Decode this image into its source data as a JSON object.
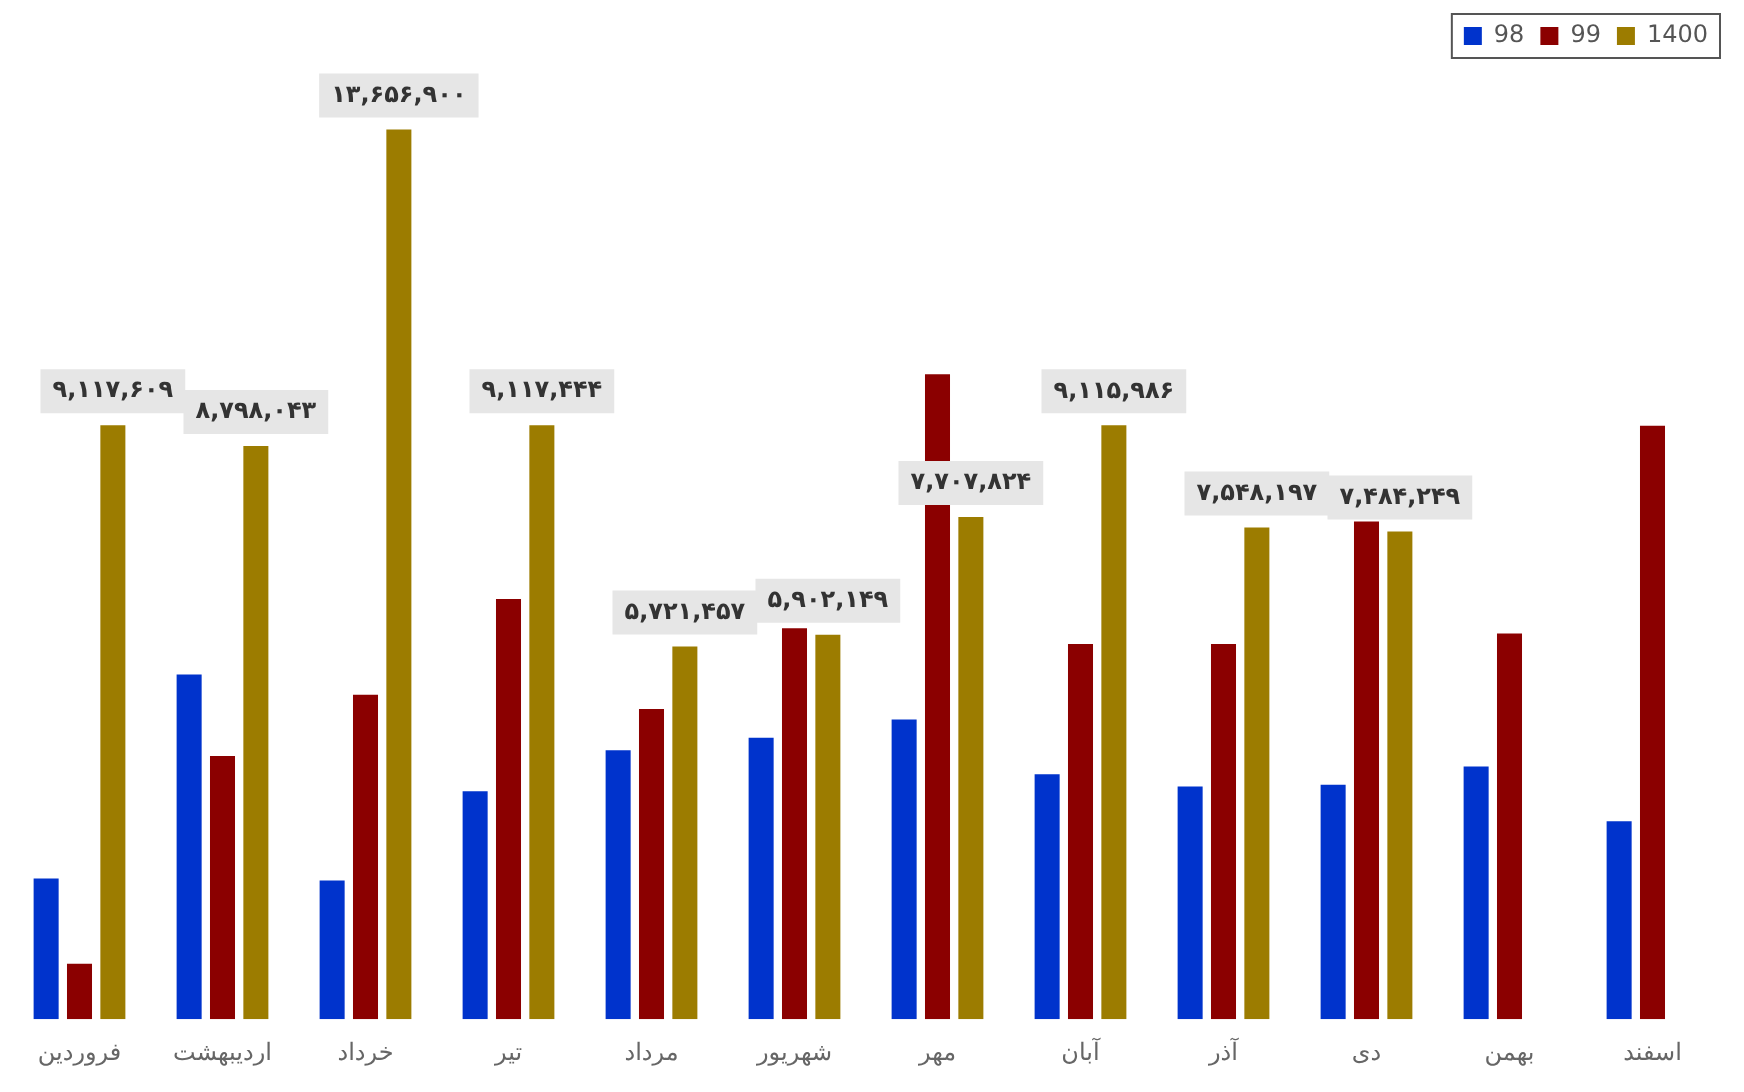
{
  "chart_data": {
    "type": "bar",
    "categories": [
      "فروردین",
      "اردیبهشت",
      "خرداد",
      "تیر",
      "مرداد",
      "شهریور",
      "مهر",
      "آبان",
      "آذر",
      "دی",
      "بهمن",
      "اسفند"
    ],
    "series": [
      {
        "name": "98",
        "color": "#0033cc",
        "values": [
          2160000,
          5290000,
          2130000,
          3500000,
          4130000,
          4320000,
          4600000,
          3760000,
          3570000,
          3600000,
          3880000,
          3040000
        ]
      },
      {
        "name": "99",
        "color": "#8b0000",
        "values": [
          850000,
          4040000,
          4980000,
          6450000,
          4760000,
          6000000,
          9900000,
          5760000,
          5760000,
          7640000,
          5920000,
          9110000
        ]
      },
      {
        "name": "1400",
        "color": "#9c7c00",
        "values": [
          9117609,
          8798043,
          13656900,
          9117444,
          5721457,
          5902149,
          7707824,
          9115986,
          7548197,
          7484249,
          null,
          null
        ],
        "value_labels": [
          "۹,۱۱۷,۶۰۹",
          "۸,۷۹۸,۰۴۳",
          "۱۳,۶۵۶,۹۰۰",
          "۹,۱۱۷,۴۴۴",
          "۵,۷۲۱,۴۵۷",
          "۵,۹۰۲,۱۴۹",
          "۷,۷۰۷,۸۲۴",
          "۹,۱۱۵,۹۸۶",
          "۷,۵۴۸,۱۹۷",
          "۷,۴۸۴,۲۴۹",
          null,
          null
        ]
      }
    ],
    "ylim": [
      0,
      14600000
    ],
    "tick_labels": "x",
    "grid": false,
    "legend": "top right"
  }
}
